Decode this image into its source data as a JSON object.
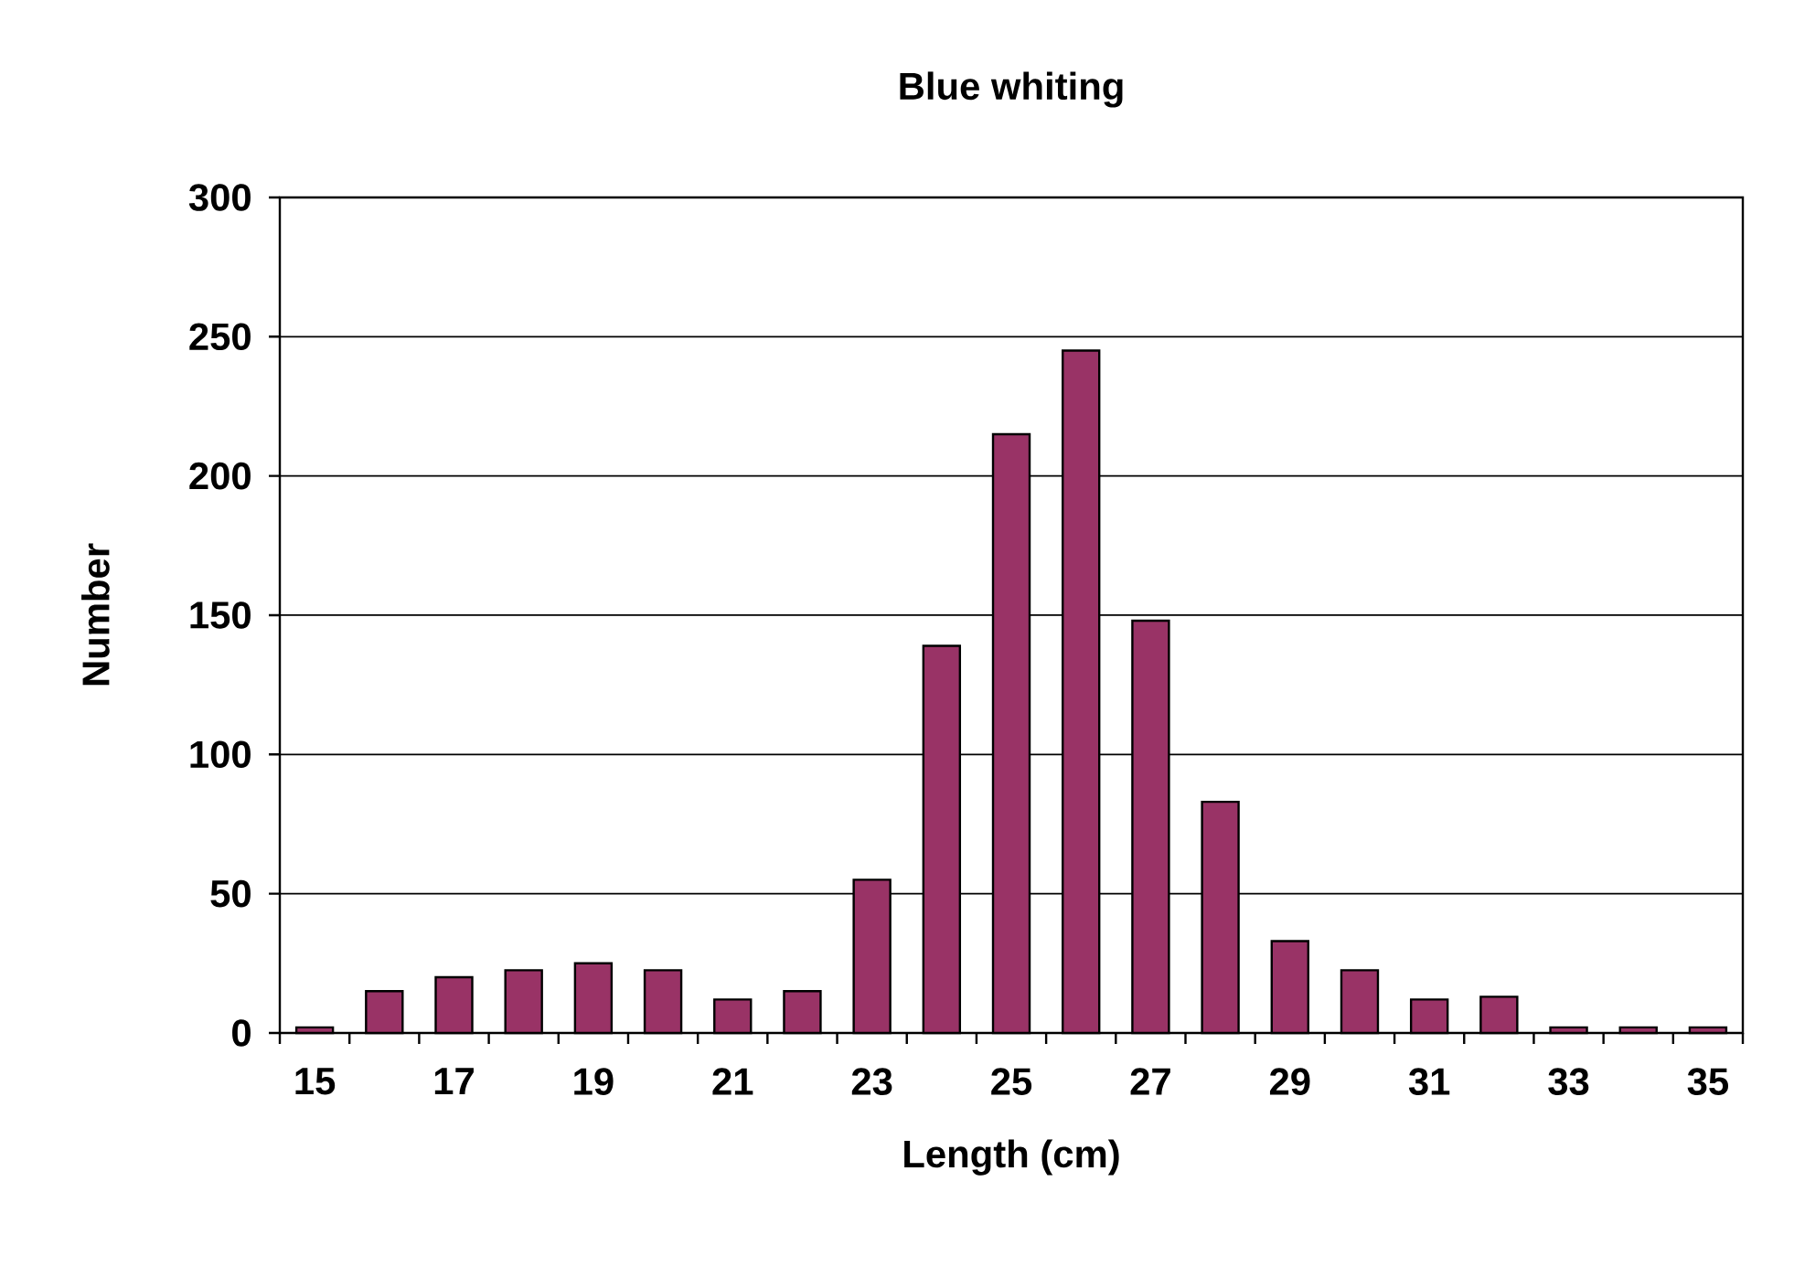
{
  "chart_data": {
    "type": "bar",
    "title": "Blue whiting",
    "xlabel": "Length (cm)",
    "ylabel": "Number",
    "categories": [
      "15",
      null,
      "17",
      null,
      "19",
      null,
      "21",
      null,
      "23",
      null,
      "25",
      null,
      "27",
      null,
      "29",
      null,
      "31",
      null,
      "33",
      null,
      "35"
    ],
    "values": [
      2,
      15,
      20,
      22.5,
      25,
      22.5,
      12,
      15,
      55,
      139,
      215,
      245,
      148,
      83,
      33,
      22.5,
      12,
      13,
      2,
      2,
      2
    ],
    "color": "#993366",
    "ylim": [
      0,
      300
    ],
    "yticks": [
      0,
      50,
      100,
      150,
      200,
      250,
      300
    ],
    "grid": "y"
  }
}
